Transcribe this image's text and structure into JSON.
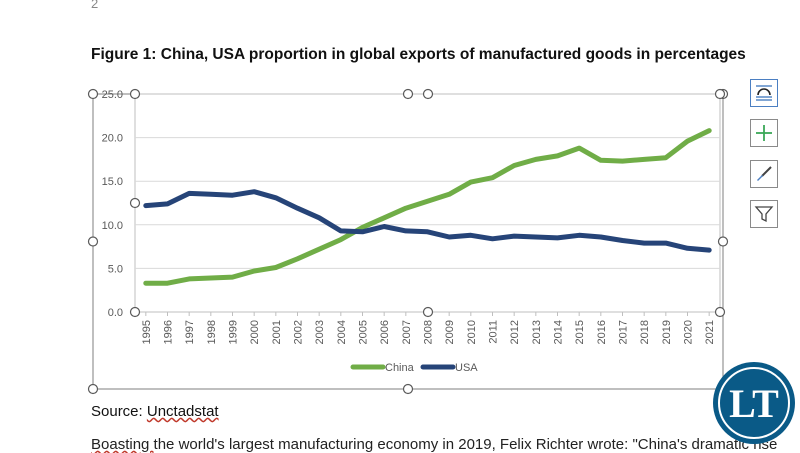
{
  "page": {
    "page_number": "2",
    "figure_title": "Figure 1: China, USA proportion in global exports of manufactured goods in percentages",
    "source_label": "Source: ",
    "source_link": "Unctadstat",
    "trailing_text_a": "Boasting ",
    "trailing_text_b": "the world's largest manufacturing economy in 2019, Felix Richter wrote: \"China's dramatic rise"
  },
  "watermark": {
    "text": "LT",
    "color": "#0a5a87"
  },
  "side_buttons": [
    {
      "name": "layout-options-icon"
    },
    {
      "name": "chart-elements-icon"
    },
    {
      "name": "chart-styles-icon"
    },
    {
      "name": "chart-filters-icon"
    }
  ],
  "chart_data": {
    "type": "line",
    "x": [
      "1995",
      "1996",
      "1997",
      "1998",
      "1999",
      "2000",
      "2001",
      "2002",
      "2003",
      "2004",
      "2005",
      "2006",
      "2007",
      "2008",
      "2009",
      "2010",
      "2011",
      "2012",
      "2013",
      "2014",
      "2015",
      "2016",
      "2017",
      "2018",
      "2019",
      "2020",
      "2021"
    ],
    "series": [
      {
        "name": "China",
        "color": "#70ad47",
        "values": [
          3.3,
          3.3,
          3.8,
          3.9,
          4.0,
          4.7,
          5.1,
          6.1,
          7.2,
          8.3,
          9.7,
          10.8,
          11.9,
          12.7,
          13.5,
          14.9,
          15.4,
          16.8,
          17.5,
          17.9,
          18.8,
          17.4,
          17.3,
          17.5,
          17.7,
          19.6,
          20.8
        ]
      },
      {
        "name": "USA",
        "color": "#264478",
        "values": [
          12.2,
          12.4,
          13.6,
          13.5,
          13.4,
          13.8,
          13.1,
          11.9,
          10.8,
          9.3,
          9.2,
          9.8,
          9.3,
          9.2,
          8.6,
          8.8,
          8.4,
          8.7,
          8.6,
          8.5,
          8.8,
          8.6,
          8.2,
          7.9,
          7.9,
          7.3,
          7.1
        ]
      }
    ],
    "y_ticks": [
      "0.0",
      "5.0",
      "10.0",
      "15.0",
      "20.0",
      "25.0"
    ],
    "ylim": [
      0,
      25
    ],
    "grid": true,
    "legend_position": "bottom"
  }
}
